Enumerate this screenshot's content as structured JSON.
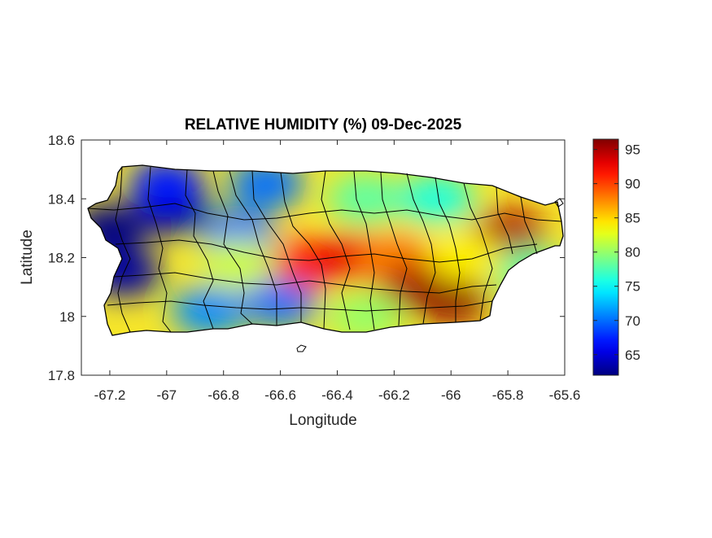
{
  "title": "RELATIVE HUMIDITY (%) 09-Dec-2025",
  "chart_data": {
    "type": "heatmap",
    "title": "RELATIVE HUMIDITY (%) 09-Dec-2025",
    "xlabel": "Longitude",
    "ylabel": "Latitude",
    "xlim": [
      -67.3,
      -65.6
    ],
    "ylim": [
      17.8,
      18.6
    ],
    "xticks": [
      -67.2,
      -67,
      -66.8,
      -66.6,
      -66.4,
      -66.2,
      -66,
      -65.8,
      -65.6
    ],
    "xtick_labels": [
      "-67.2",
      "-67",
      "-66.8",
      "-66.6",
      "-66.4",
      "-66.2",
      "-66",
      "-65.8",
      "-65.6"
    ],
    "yticks": [
      17.8,
      18,
      18.2,
      18.4,
      18.6
    ],
    "ytick_labels": [
      "17.8",
      "18",
      "18.2",
      "18.4",
      "18.6"
    ],
    "colorbar": {
      "colormap": "jet",
      "limits": [
        62,
        96.5
      ],
      "ticks": [
        65,
        70,
        75,
        80,
        85,
        90,
        95
      ],
      "tick_labels": [
        "65",
        "70",
        "75",
        "80",
        "85",
        "90",
        "95"
      ]
    },
    "field_blobs": [
      {
        "lon": -67.2,
        "lat": 18.3,
        "value": 62
      },
      {
        "lon": -67.15,
        "lat": 18.15,
        "value": 63
      },
      {
        "lon": -66.98,
        "lat": 18.36,
        "value": 63
      },
      {
        "lon": -67.0,
        "lat": 18.45,
        "value": 67
      },
      {
        "lon": -66.65,
        "lat": 18.45,
        "value": 70
      },
      {
        "lon": -66.75,
        "lat": 18.28,
        "value": 70
      },
      {
        "lon": -66.85,
        "lat": 18.02,
        "value": 71
      },
      {
        "lon": -66.6,
        "lat": 18.05,
        "value": 70
      },
      {
        "lon": -66.75,
        "lat": 18.18,
        "value": 82
      },
      {
        "lon": -66.5,
        "lat": 18.18,
        "value": 91
      },
      {
        "lon": -66.35,
        "lat": 18.2,
        "value": 93
      },
      {
        "lon": -66.2,
        "lat": 18.2,
        "value": 88
      },
      {
        "lon": -66.12,
        "lat": 18.1,
        "value": 95
      },
      {
        "lon": -66.0,
        "lat": 18.06,
        "value": 96
      },
      {
        "lon": -65.8,
        "lat": 18.28,
        "value": 95
      },
      {
        "lon": -66.3,
        "lat": 18.4,
        "value": 78
      },
      {
        "lon": -66.05,
        "lat": 18.4,
        "value": 76
      },
      {
        "lon": -65.72,
        "lat": 18.15,
        "value": 78
      },
      {
        "lon": -66.3,
        "lat": 18.0,
        "value": 80
      },
      {
        "lon": -65.95,
        "lat": 18.2,
        "value": 84
      }
    ]
  }
}
